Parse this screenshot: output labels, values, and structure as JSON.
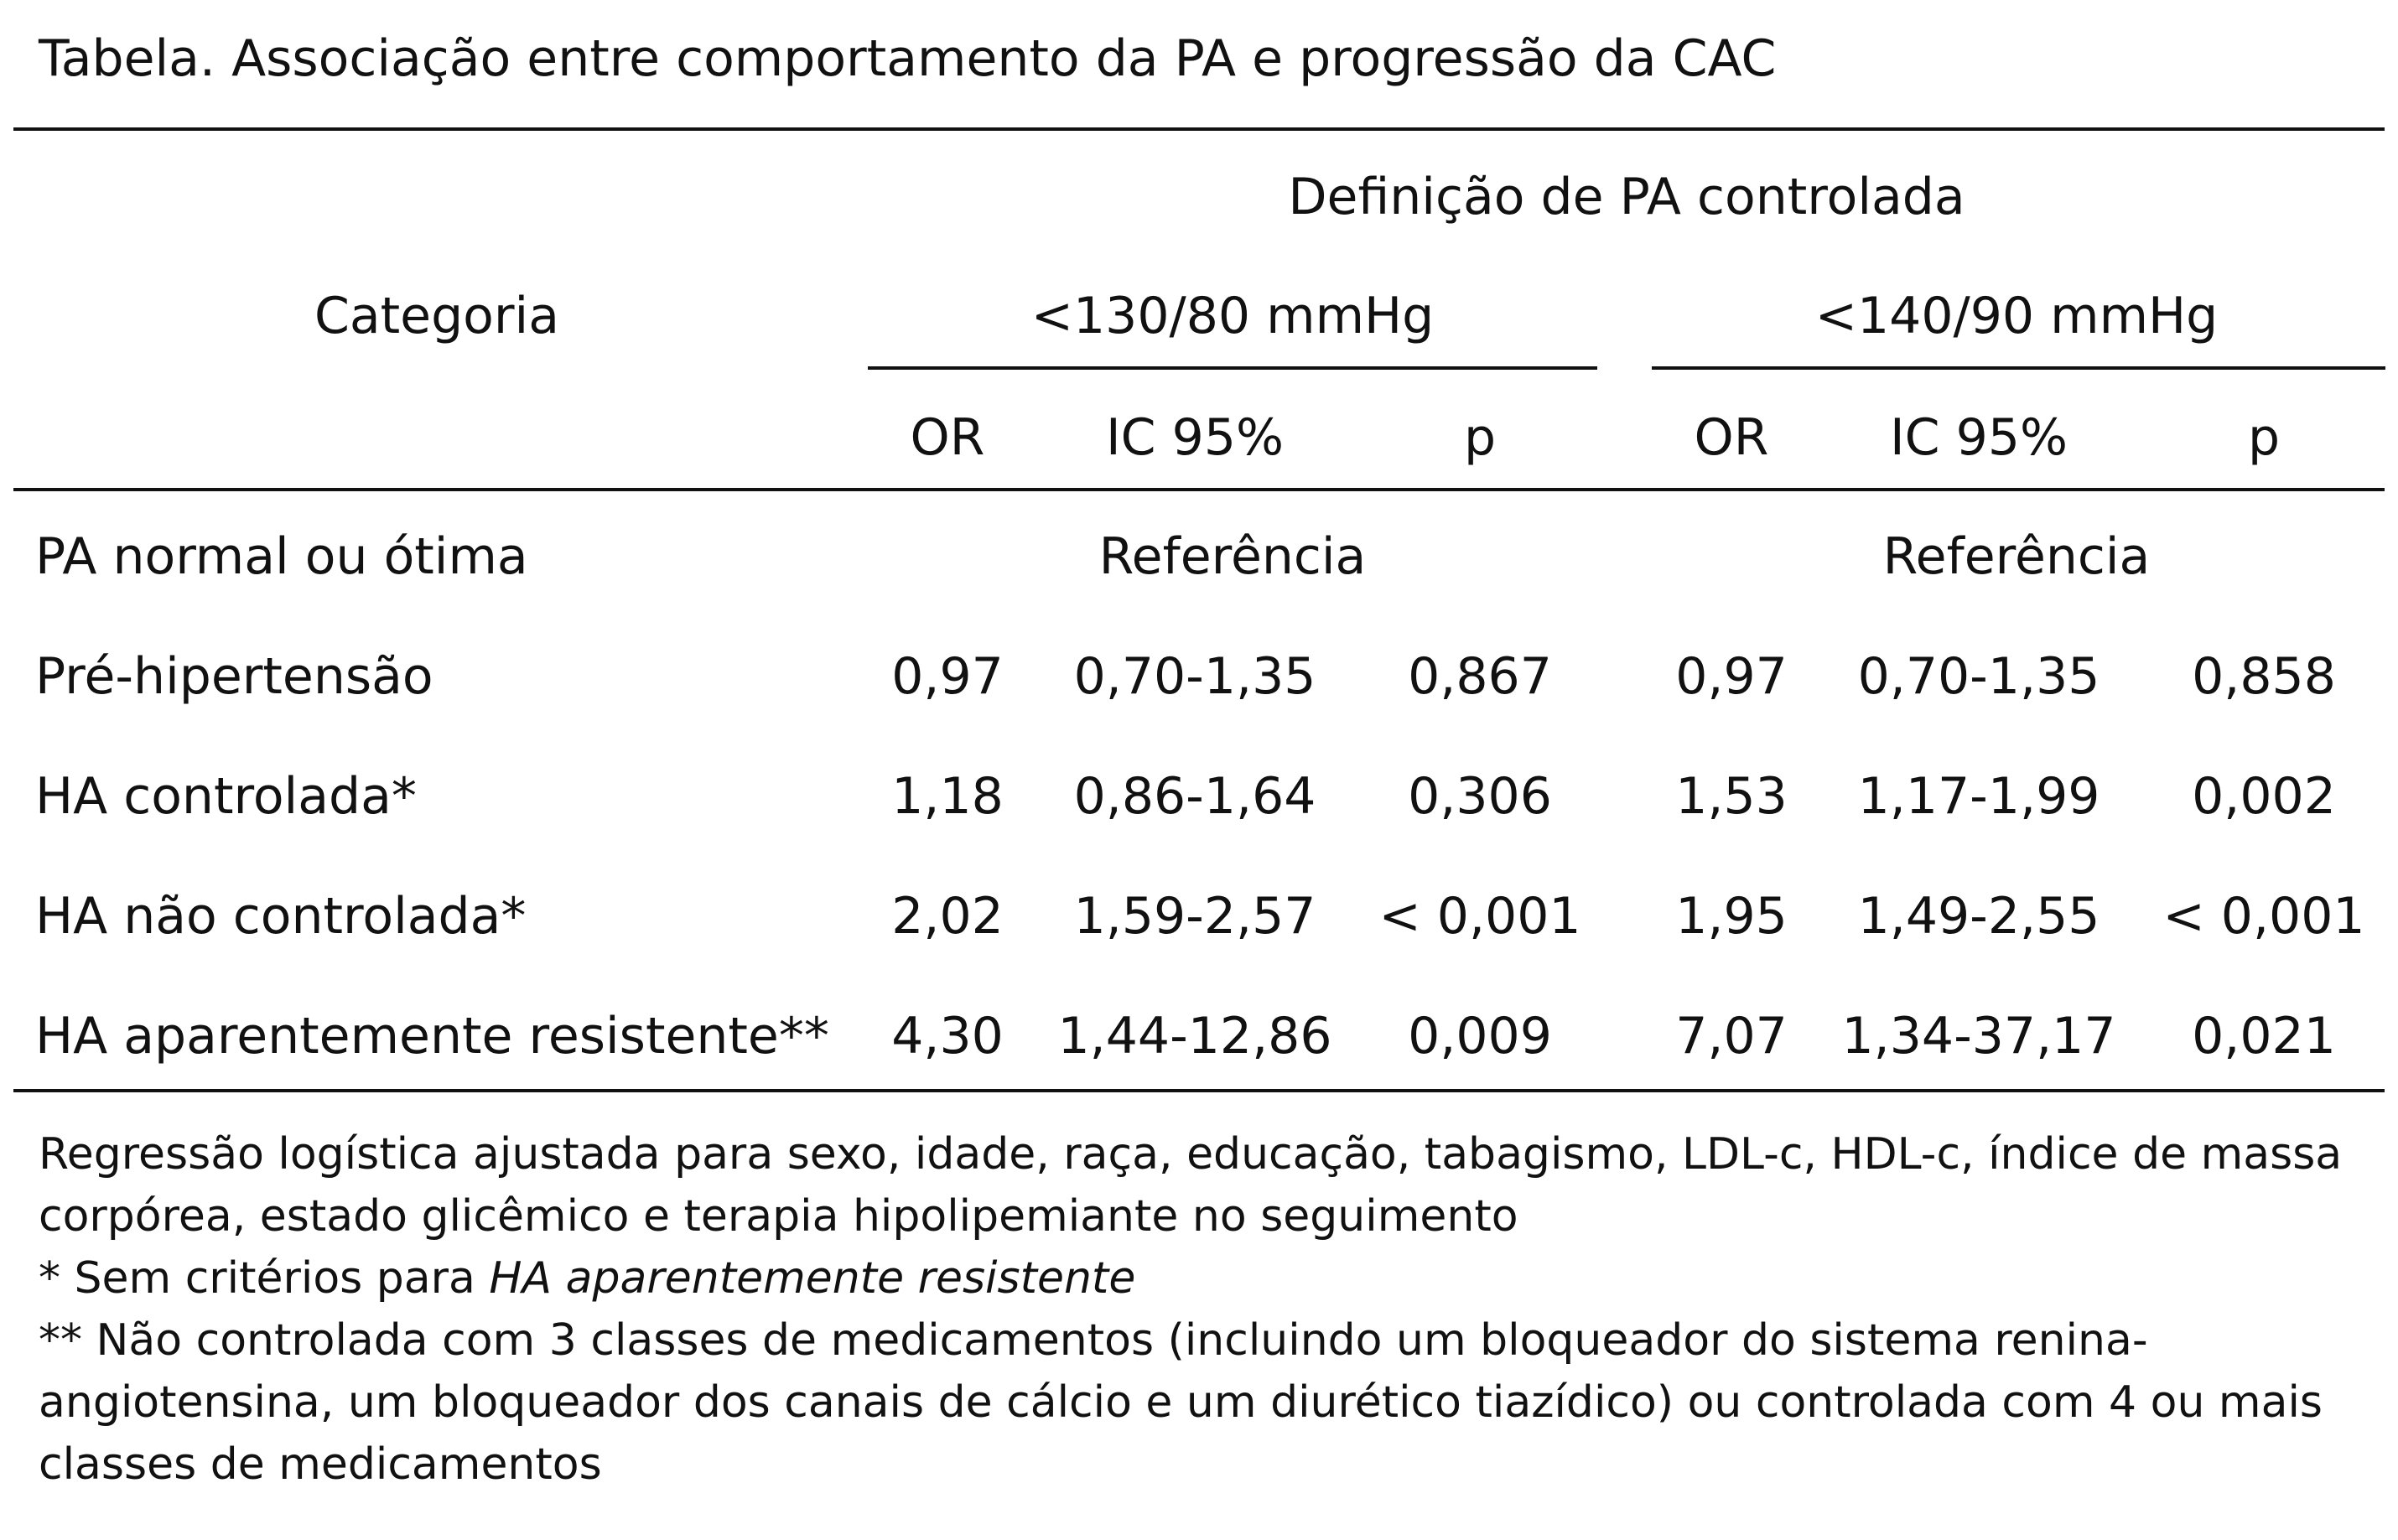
{
  "title": "Tabela. Associação entre comportamento da PA e progressão da CAC",
  "header": {
    "category": "Categoria",
    "group": "Definição de PA controlada",
    "def1": "<130/80 mmHg",
    "def2": "<140/90 mmHg",
    "or": "OR",
    "ic": "IC 95%",
    "p": "p"
  },
  "rows": [
    {
      "label": "PA normal ou ótima",
      "reference1": "Referência",
      "reference2": "Referência"
    },
    {
      "label": "Pré-hipertensão",
      "or1": "0,97",
      "ic1": "0,70-1,35",
      "p1": "0,867",
      "or2": "0,97",
      "ic2": "0,70-1,35",
      "p2": "0,858"
    },
    {
      "label": "HA controlada*",
      "or1": "1,18",
      "ic1": "0,86-1,64",
      "p1": "0,306",
      "or2": "1,53",
      "ic2": "1,17-1,99",
      "p2": "0,002"
    },
    {
      "label": "HA não controlada*",
      "or1": "2,02",
      "ic1": "1,59-2,57",
      "p1": "< 0,001",
      "or2": "1,95",
      "ic2": "1,49-2,55",
      "p2": "< 0,001"
    },
    {
      "label": "HA aparentemente resistente**",
      "or1": "4,30",
      "ic1": "1,44-12,86",
      "p1": "0,009",
      "or2": "7,07",
      "ic2": "1,34-37,17",
      "p2": "0,021"
    }
  ],
  "notes": {
    "line1": "Regressão logística ajustada para sexo, idade, raça, educação, tabagismo, LDL-c, HDL-c, índice de massa",
    "line2": "corpórea, estado glicêmico e terapia hipolipemiante no seguimento",
    "line3_prefix": "* Sem critérios para ",
    "line3_italic": "HA aparentemente resistente",
    "line4": "** Não controlada com 3 classes de medicamentos (incluindo um bloqueador do sistema renina-",
    "line5": "angiotensina, um bloqueador dos canais de cálcio e um diurético tiazídico) ou controlada com 4 ou mais",
    "line6": "classes de medicamentos"
  }
}
